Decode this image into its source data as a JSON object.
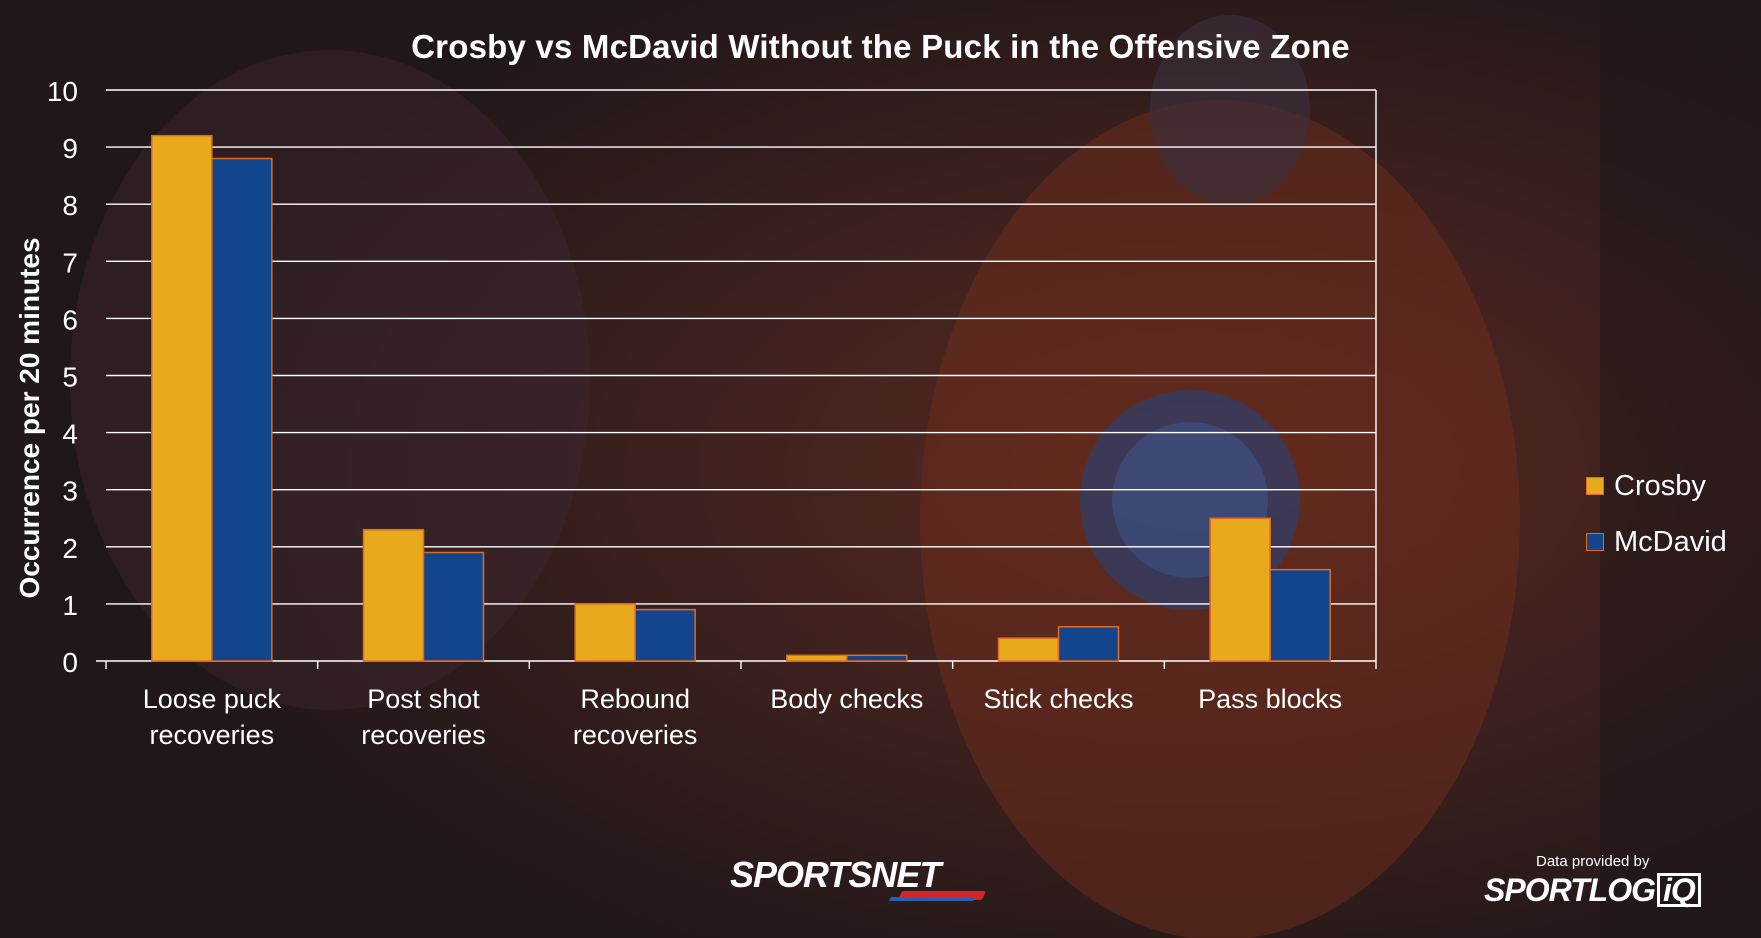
{
  "chart_data": {
    "type": "bar",
    "title": "Crosby vs McDavid Without the Puck in the Offensive Zone",
    "xlabel": "",
    "ylabel": "Occurrence per 20 minutes",
    "ylim": [
      0,
      10
    ],
    "yticks": [
      "0",
      "1",
      "2",
      "3",
      "4",
      "5",
      "6",
      "7",
      "8",
      "9",
      "10"
    ],
    "grid": true,
    "legend_position": "right",
    "categories": [
      [
        "Loose puck",
        "recoveries"
      ],
      [
        "Post shot",
        "recoveries"
      ],
      [
        "Rebound",
        "recoveries"
      ],
      [
        "Body checks"
      ],
      [
        "Stick checks"
      ],
      [
        "Pass blocks"
      ]
    ],
    "series": [
      {
        "name": "Crosby",
        "color": "#e8a91c",
        "values": [
          9.2,
          2.3,
          1.0,
          0.1,
          0.4,
          2.5
        ]
      },
      {
        "name": "McDavid",
        "color": "#13458d",
        "values": [
          8.8,
          1.9,
          0.9,
          0.1,
          0.6,
          1.6
        ]
      }
    ],
    "bar_edge_color": "#e06a1f"
  },
  "footer": {
    "brand": "SPORTSNET",
    "credit_caption": "Data provided by",
    "credit_brand_main": "SPORTLOG",
    "credit_brand_badge": "iQ"
  },
  "colors": {
    "background_tint": "#241a1c",
    "text": "#ffffff",
    "gridline": "#ffffff"
  }
}
